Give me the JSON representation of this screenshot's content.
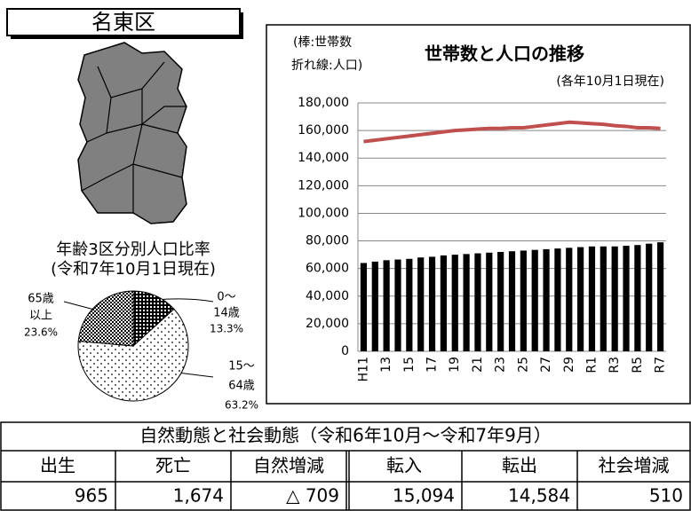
{
  "ward_name": "名東区",
  "chart_data": [
    {
      "type": "pie",
      "title": "年齢3区分別人口比率",
      "subtitle": "(令和7年10月1日現在)",
      "categories": [
        [
          "0～",
          "14歳"
        ],
        [
          "15～",
          "64歳"
        ],
        [
          "65歳",
          "以上"
        ]
      ],
      "values": [
        13.3,
        63.2,
        23.6
      ],
      "value_labels": [
        "13.3%",
        "63.2%",
        "23.6%"
      ]
    },
    {
      "type": "bar-line",
      "title": "世帯数と人口の推移",
      "annotation": [
        "(棒:世帯数",
        "折れ線:人口)"
      ],
      "subtitle": "(各年10月1日現在)",
      "categories": [
        "H11",
        null,
        "13",
        null,
        "15",
        null,
        "17",
        null,
        "19",
        null,
        "21",
        null,
        "23",
        null,
        "25",
        null,
        "27",
        null,
        "29",
        null,
        "R1",
        null,
        "R3",
        null,
        "R5",
        null,
        "R7"
      ],
      "series": [
        {
          "type": "bar",
          "color": "#000000",
          "values": [
            64000,
            65000,
            66000,
            66500,
            67000,
            68000,
            68500,
            69500,
            70000,
            70500,
            71000,
            71500,
            72000,
            72500,
            73000,
            73500,
            74000,
            74500,
            75000,
            75500,
            76000,
            76000,
            76000,
            76500,
            77000,
            78000,
            79000
          ]
        },
        {
          "type": "line",
          "color": "#c0504d",
          "values": [
            152000,
            153000,
            154000,
            155000,
            156000,
            157000,
            158000,
            159000,
            160000,
            160500,
            161000,
            161500,
            161500,
            162000,
            162000,
            163000,
            164000,
            165000,
            166000,
            165500,
            165000,
            164500,
            163500,
            163000,
            162000,
            162000,
            161500
          ]
        }
      ],
      "ylim": [
        0,
        180000
      ],
      "yticks": [
        0,
        {
          "value": 20000,
          "label": "20,000"
        },
        {
          "value": 40000,
          "label": "40,000"
        },
        {
          "value": 60000,
          "label": "60,000"
        },
        {
          "value": 80000,
          "label": "80,000"
        },
        {
          "value": 100000,
          "label": "100,000"
        },
        {
          "value": 120000,
          "label": "120,000"
        },
        {
          "value": 140000,
          "label": "140,000"
        },
        {
          "value": 160000,
          "label": "160,000"
        },
        {
          "value": 180000,
          "label": "180,000"
        }
      ],
      "grid": true
    }
  ],
  "table": {
    "title": "自然動態と社会動態（令和6年10月～令和7年9月）",
    "headers": [
      "出生",
      "死亡",
      "自然増減",
      "転入",
      "転出",
      "社会増減"
    ],
    "rows": [
      [
        "965",
        "1,674",
        "△ 709",
        "15,094",
        "14,584",
        "510"
      ]
    ]
  }
}
